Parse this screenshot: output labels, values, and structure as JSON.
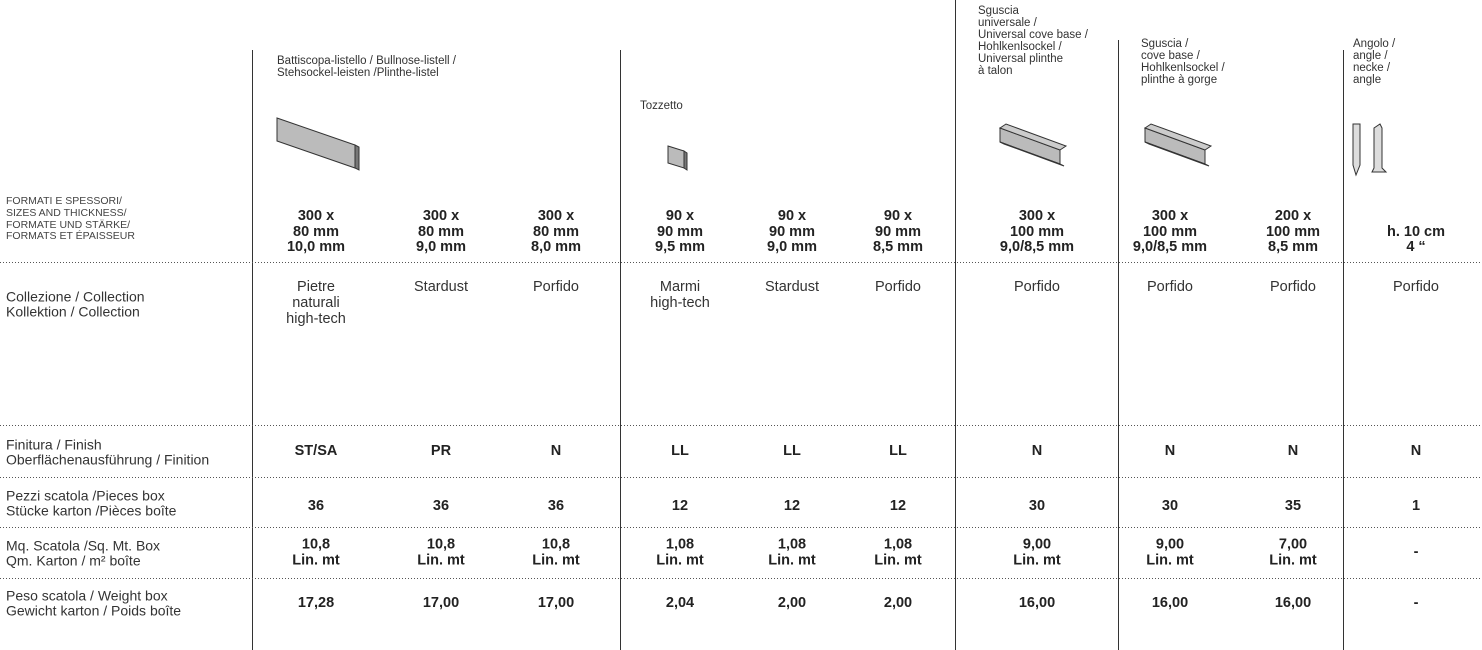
{
  "groups": [
    {
      "label": "Battiscopa-listello / Bullnose-listell /\nStehsockel-leisten /Plinthe-listel"
    },
    {
      "label": "Tozzetto"
    },
    {
      "label": "Sguscia\nuniversale /\nUniversal cove base /\nHohlkenlsockel /\nUniversal plinthe\nà talon"
    },
    {
      "label": "Sguscia /\ncove base /\nHohlkenlsockel /\nplinthe à gorge"
    },
    {
      "label": "Angolo /\nangle /\nnecke /\nangle"
    }
  ],
  "row_labels": {
    "size": "FORMATI  E SPESSORI/\nSIZES AND THICKNESS/\nFORMATE UND STÄRKE/\nFORMATS ET ÉPAISSEUR",
    "collection": "Collezione  / Collection\nKollektion  / Collection",
    "finish": "Finitura / Finish\nOberflächenausführung / Finition",
    "pieces": "Pezzi scatola /Pieces box\nStücke karton /Pièces boîte",
    "area": "Mq. Scatola /Sq. Mt. Box\nQm. Karton / m² boîte",
    "weight": "Peso scatola / Weight box\nGewicht karton / Poids boîte"
  },
  "columns": [
    {
      "size": "300 x\n80 mm\n10,0 mm",
      "collection": "Pietre\nnaturali\nhigh-tech",
      "finish": "ST/SA",
      "pieces": "36",
      "area": "10,8\nLin. mt",
      "weight": "17,28"
    },
    {
      "size": "300 x\n80 mm\n9,0 mm",
      "collection": "Stardust",
      "finish": "PR",
      "pieces": "36",
      "area": "10,8\nLin. mt",
      "weight": "17,00"
    },
    {
      "size": "300 x\n80 mm\n8,0 mm",
      "collection": "Porfido",
      "finish": "N",
      "pieces": "36",
      "area": "10,8\nLin. mt",
      "weight": "17,00"
    },
    {
      "size": "90 x\n90 mm\n9,5 mm",
      "collection": "Marmi\nhigh-tech",
      "finish": "LL",
      "pieces": "12",
      "area": "1,08\nLin. mt",
      "weight": "2,04"
    },
    {
      "size": "90 x\n90 mm\n9,0 mm",
      "collection": "Stardust",
      "finish": "LL",
      "pieces": "12",
      "area": "1,08\nLin. mt",
      "weight": "2,00"
    },
    {
      "size": "90 x\n90 mm\n8,5 mm",
      "collection": "Porfido",
      "finish": "LL",
      "pieces": "12",
      "area": "1,08\nLin. mt",
      "weight": "2,00"
    },
    {
      "size": "300 x\n100 mm\n9,0/8,5 mm",
      "collection": "Porfido",
      "finish": "N",
      "pieces": "30",
      "area": "9,00\nLin. mt",
      "weight": "16,00"
    },
    {
      "size": "300 x\n100 mm\n9,0/8,5 mm",
      "collection": "Porfido",
      "finish": "N",
      "pieces": "30",
      "area": "9,00\nLin. mt",
      "weight": "16,00"
    },
    {
      "size": "200 x\n100 mm\n8,5 mm",
      "collection": "Porfido",
      "finish": "N",
      "pieces": "35",
      "area": "7,00\nLin. mt",
      "weight": "16,00"
    },
    {
      "size": "h. 10 cm\n4 “",
      "collection": "Porfido",
      "finish": "N",
      "pieces": "1",
      "area": "-",
      "weight": "-"
    }
  ]
}
